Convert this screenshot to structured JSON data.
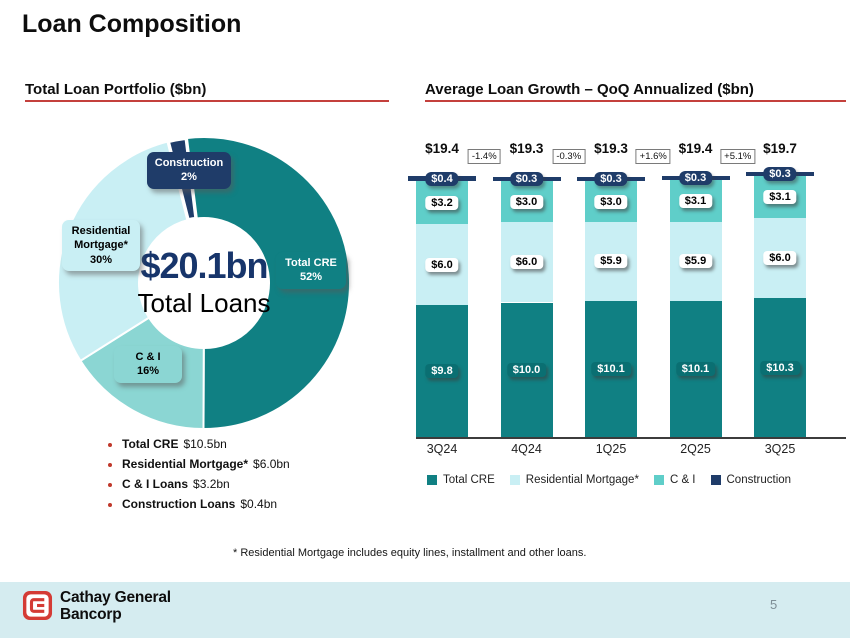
{
  "slide": {
    "title": "Loan Composition",
    "page_number": "5",
    "footnote": "*  Residential Mortgage includes equity lines, installment and other loans."
  },
  "left_panel": {
    "header": "Total Loan Portfolio ($bn)",
    "center_value": "$20.1bn",
    "center_label": "Total Loans",
    "callouts": [
      {
        "id": "construction",
        "lines": [
          "Construction",
          "2%"
        ]
      },
      {
        "id": "residential",
        "lines": [
          "Residential",
          "Mortgage*",
          "30%"
        ]
      },
      {
        "id": "cre",
        "lines": [
          "Total CRE",
          "52%"
        ]
      },
      {
        "id": "ci",
        "lines": [
          "C & I",
          "16%"
        ]
      }
    ],
    "bullets": [
      {
        "label": "Total CRE",
        "value": "$10.5bn"
      },
      {
        "label": "Residential Mortgage*",
        "value": "$6.0bn"
      },
      {
        "label": "C & I Loans",
        "value": "$3.2bn"
      },
      {
        "label": "Construction Loans",
        "value": "$0.4bn"
      }
    ]
  },
  "right_panel": {
    "header": "Average Loan Growth – QoQ Annualized ($bn)"
  },
  "footer": {
    "company_line1": "Cathay General",
    "company_line2": "Bancorp"
  },
  "colors": {
    "accent_red": "#C4403C",
    "navy": "#1F3C69",
    "dark_teal": "#108083",
    "mid_teal": "#8BD6D3",
    "bar_mid_teal": "#5FCEC9",
    "light_cyan": "#C9EFF4",
    "footer_bg": "#D5ECF0",
    "logo_red": "#D43B35",
    "bullet_red": "#C0392B"
  },
  "chart_data": [
    {
      "type": "pie",
      "title": "Total Loan Portfolio ($bn)",
      "donut": true,
      "rotation_deg": -7,
      "slices": [
        {
          "label": "Total CRE",
          "value": 52,
          "color": "#108083"
        },
        {
          "label": "C & I",
          "value": 16,
          "color": "#8BD6D3"
        },
        {
          "label": "Residential Mortgage*",
          "value": 30,
          "color": "#C9EFF4"
        },
        {
          "label": "Construction",
          "value": 2,
          "color": "#1F3C69"
        }
      ],
      "center": {
        "value": "$20.1bn",
        "label": "Total Loans"
      }
    },
    {
      "type": "bar",
      "stacked": true,
      "title": "Average Loan Growth – QoQ Annualized ($bn)",
      "categories": [
        "3Q24",
        "4Q24",
        "1Q25",
        "2Q25",
        "3Q25"
      ],
      "series": [
        {
          "name": "Total CRE",
          "color": "#108083",
          "label_style": "cre",
          "values": [
            9.8,
            10.0,
            10.1,
            10.1,
            10.3
          ]
        },
        {
          "name": "Residential Mortgage*",
          "color": "#C9EFF4",
          "label_style": "on-light",
          "values": [
            6.0,
            6.0,
            5.9,
            5.9,
            6.0
          ]
        },
        {
          "name": "C & I",
          "color": "#5FCEC9",
          "label_style": "on-light",
          "values": [
            3.2,
            3.0,
            3.0,
            3.1,
            3.1
          ]
        },
        {
          "name": "Construction",
          "color": "#1F3C69",
          "label_style": "constr",
          "values": [
            0.4,
            0.3,
            0.3,
            0.3,
            0.3
          ]
        }
      ],
      "totals": [
        "$19.4",
        "$19.3",
        "$19.3",
        "$19.4",
        "$19.7"
      ],
      "qoq_growth": [
        "-1.4%",
        "-0.3%",
        "+1.6%",
        "+5.1%"
      ],
      "value_prefix": "$",
      "ylim": [
        0,
        19.7
      ],
      "grid": false,
      "legend_position": "bottom"
    }
  ]
}
